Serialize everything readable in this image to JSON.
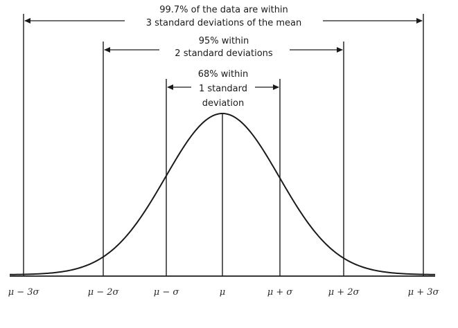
{
  "annotations": {
    "three_sigma": {
      "line1": "99.7% of the data are within",
      "line2": "3 standard deviations of the mean"
    },
    "two_sigma": {
      "line1": "95% within",
      "line2": "2 standard deviations"
    },
    "one_sigma": {
      "line1": "68% within",
      "line2": "1 standard",
      "line3": "deviation"
    }
  },
  "x_ticks": [
    "μ − 3σ",
    "μ − 2σ",
    "μ − σ",
    "μ",
    "μ + σ",
    "μ + 2σ",
    "μ + 3σ"
  ],
  "colors": {
    "ink": "#1a1a1a",
    "background": "#ffffff"
  }
}
